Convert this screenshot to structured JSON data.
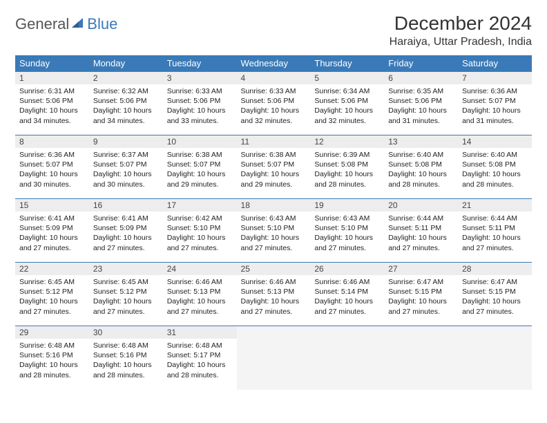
{
  "logo": {
    "text1": "General",
    "text2": "Blue"
  },
  "title": "December 2024",
  "location": "Haraiya, Uttar Pradesh, India",
  "colors": {
    "header_bg": "#3a7ab8",
    "header_fg": "#ffffff",
    "daynum_bg": "#ededed",
    "border": "#3a7ab8",
    "logo_gray": "#555555",
    "logo_blue": "#3a7ab8"
  },
  "weekdays": [
    "Sunday",
    "Monday",
    "Tuesday",
    "Wednesday",
    "Thursday",
    "Friday",
    "Saturday"
  ],
  "weeks": [
    [
      {
        "n": "1",
        "sr": "6:31 AM",
        "ss": "5:06 PM",
        "dl": "10 hours and 34 minutes."
      },
      {
        "n": "2",
        "sr": "6:32 AM",
        "ss": "5:06 PM",
        "dl": "10 hours and 34 minutes."
      },
      {
        "n": "3",
        "sr": "6:33 AM",
        "ss": "5:06 PM",
        "dl": "10 hours and 33 minutes."
      },
      {
        "n": "4",
        "sr": "6:33 AM",
        "ss": "5:06 PM",
        "dl": "10 hours and 32 minutes."
      },
      {
        "n": "5",
        "sr": "6:34 AM",
        "ss": "5:06 PM",
        "dl": "10 hours and 32 minutes."
      },
      {
        "n": "6",
        "sr": "6:35 AM",
        "ss": "5:06 PM",
        "dl": "10 hours and 31 minutes."
      },
      {
        "n": "7",
        "sr": "6:36 AM",
        "ss": "5:07 PM",
        "dl": "10 hours and 31 minutes."
      }
    ],
    [
      {
        "n": "8",
        "sr": "6:36 AM",
        "ss": "5:07 PM",
        "dl": "10 hours and 30 minutes."
      },
      {
        "n": "9",
        "sr": "6:37 AM",
        "ss": "5:07 PM",
        "dl": "10 hours and 30 minutes."
      },
      {
        "n": "10",
        "sr": "6:38 AM",
        "ss": "5:07 PM",
        "dl": "10 hours and 29 minutes."
      },
      {
        "n": "11",
        "sr": "6:38 AM",
        "ss": "5:07 PM",
        "dl": "10 hours and 29 minutes."
      },
      {
        "n": "12",
        "sr": "6:39 AM",
        "ss": "5:08 PM",
        "dl": "10 hours and 28 minutes."
      },
      {
        "n": "13",
        "sr": "6:40 AM",
        "ss": "5:08 PM",
        "dl": "10 hours and 28 minutes."
      },
      {
        "n": "14",
        "sr": "6:40 AM",
        "ss": "5:08 PM",
        "dl": "10 hours and 28 minutes."
      }
    ],
    [
      {
        "n": "15",
        "sr": "6:41 AM",
        "ss": "5:09 PM",
        "dl": "10 hours and 27 minutes."
      },
      {
        "n": "16",
        "sr": "6:41 AM",
        "ss": "5:09 PM",
        "dl": "10 hours and 27 minutes."
      },
      {
        "n": "17",
        "sr": "6:42 AM",
        "ss": "5:10 PM",
        "dl": "10 hours and 27 minutes."
      },
      {
        "n": "18",
        "sr": "6:43 AM",
        "ss": "5:10 PM",
        "dl": "10 hours and 27 minutes."
      },
      {
        "n": "19",
        "sr": "6:43 AM",
        "ss": "5:10 PM",
        "dl": "10 hours and 27 minutes."
      },
      {
        "n": "20",
        "sr": "6:44 AM",
        "ss": "5:11 PM",
        "dl": "10 hours and 27 minutes."
      },
      {
        "n": "21",
        "sr": "6:44 AM",
        "ss": "5:11 PM",
        "dl": "10 hours and 27 minutes."
      }
    ],
    [
      {
        "n": "22",
        "sr": "6:45 AM",
        "ss": "5:12 PM",
        "dl": "10 hours and 27 minutes."
      },
      {
        "n": "23",
        "sr": "6:45 AM",
        "ss": "5:12 PM",
        "dl": "10 hours and 27 minutes."
      },
      {
        "n": "24",
        "sr": "6:46 AM",
        "ss": "5:13 PM",
        "dl": "10 hours and 27 minutes."
      },
      {
        "n": "25",
        "sr": "6:46 AM",
        "ss": "5:13 PM",
        "dl": "10 hours and 27 minutes."
      },
      {
        "n": "26",
        "sr": "6:46 AM",
        "ss": "5:14 PM",
        "dl": "10 hours and 27 minutes."
      },
      {
        "n": "27",
        "sr": "6:47 AM",
        "ss": "5:15 PM",
        "dl": "10 hours and 27 minutes."
      },
      {
        "n": "28",
        "sr": "6:47 AM",
        "ss": "5:15 PM",
        "dl": "10 hours and 27 minutes."
      }
    ],
    [
      {
        "n": "29",
        "sr": "6:48 AM",
        "ss": "5:16 PM",
        "dl": "10 hours and 28 minutes."
      },
      {
        "n": "30",
        "sr": "6:48 AM",
        "ss": "5:16 PM",
        "dl": "10 hours and 28 minutes."
      },
      {
        "n": "31",
        "sr": "6:48 AM",
        "ss": "5:17 PM",
        "dl": "10 hours and 28 minutes."
      },
      null,
      null,
      null,
      null
    ]
  ],
  "labels": {
    "sunrise": "Sunrise:",
    "sunset": "Sunset:",
    "daylight": "Daylight:"
  }
}
